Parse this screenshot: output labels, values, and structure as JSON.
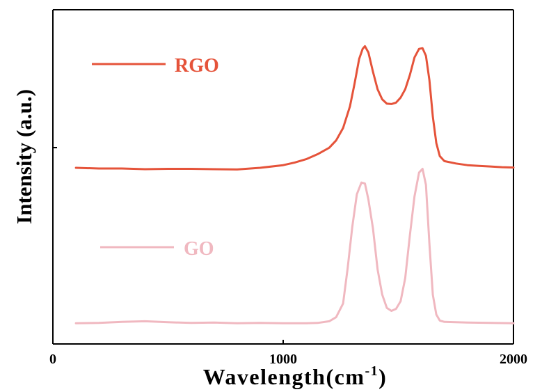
{
  "chart_data": {
    "type": "line",
    "title": "",
    "xlabel": "Wavelength(cm",
    "xlabel_sup": "-1",
    "xlabel_close": ")",
    "ylabel": "Intensity (a.u.)",
    "xlim": [
      0,
      2000
    ],
    "ylim": [
      0,
      1
    ],
    "x_ticks": [
      "0",
      "1000",
      "2000"
    ],
    "grid": false,
    "legend_placement": "inline-left",
    "series": [
      {
        "name": "RGO",
        "color": "#e5533a",
        "x": [
          100,
          200,
          300,
          400,
          500,
          600,
          700,
          800,
          900,
          1000,
          1050,
          1100,
          1150,
          1200,
          1230,
          1260,
          1290,
          1310,
          1330,
          1345,
          1355,
          1370,
          1390,
          1410,
          1430,
          1450,
          1470,
          1490,
          1510,
          1530,
          1550,
          1570,
          1590,
          1605,
          1620,
          1635,
          1650,
          1665,
          1680,
          1700,
          1750,
          1800,
          1850,
          1900,
          1950,
          2000
        ],
        "y": [
          0.527,
          0.525,
          0.525,
          0.523,
          0.524,
          0.524,
          0.523,
          0.522,
          0.527,
          0.535,
          0.543,
          0.553,
          0.568,
          0.587,
          0.609,
          0.646,
          0.711,
          0.779,
          0.853,
          0.883,
          0.891,
          0.872,
          0.814,
          0.762,
          0.732,
          0.719,
          0.718,
          0.722,
          0.737,
          0.762,
          0.805,
          0.857,
          0.883,
          0.885,
          0.862,
          0.789,
          0.68,
          0.601,
          0.562,
          0.547,
          0.54,
          0.535,
          0.533,
          0.531,
          0.529,
          0.528
        ]
      },
      {
        "name": "GO",
        "color": "#f0b8c0",
        "x": [
          100,
          200,
          300,
          400,
          500,
          600,
          700,
          800,
          900,
          1000,
          1100,
          1150,
          1200,
          1230,
          1260,
          1280,
          1300,
          1320,
          1340,
          1355,
          1370,
          1390,
          1410,
          1430,
          1450,
          1470,
          1490,
          1510,
          1530,
          1550,
          1570,
          1590,
          1605,
          1620,
          1635,
          1650,
          1665,
          1680,
          1700,
          1750,
          1800,
          1900,
          2000
        ],
        "y": [
          0.062,
          0.063,
          0.066,
          0.068,
          0.065,
          0.063,
          0.064,
          0.062,
          0.063,
          0.062,
          0.062,
          0.063,
          0.068,
          0.08,
          0.121,
          0.227,
          0.35,
          0.448,
          0.483,
          0.48,
          0.432,
          0.345,
          0.223,
          0.148,
          0.108,
          0.099,
          0.105,
          0.128,
          0.197,
          0.325,
          0.441,
          0.513,
          0.524,
          0.476,
          0.299,
          0.147,
          0.088,
          0.07,
          0.066,
          0.065,
          0.064,
          0.063,
          0.062
        ]
      }
    ]
  }
}
